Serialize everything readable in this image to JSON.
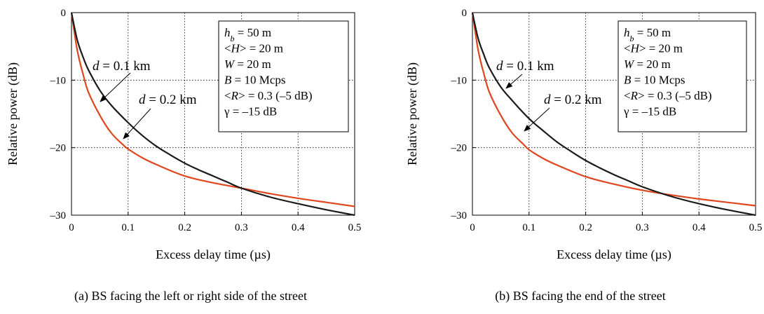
{
  "chart_data": [
    {
      "type": "line",
      "caption": "(a) BS facing the left or right side of the street",
      "xlabel": "Excess delay time (µs)",
      "ylabel": "Relative power (dB)",
      "xlim": [
        0,
        0.5
      ],
      "ylim": [
        -30,
        0
      ],
      "xticks": [
        "0",
        "0.1",
        "0.2",
        "0.3",
        "0.4",
        "0.5"
      ],
      "yticks": [
        "0",
        "–10",
        "–20",
        "–30"
      ],
      "grid": "dotted",
      "series": [
        {
          "name": "d = 0.1 km",
          "color": "#1a1a1a",
          "x": [
            0,
            0.01,
            0.02,
            0.03,
            0.05,
            0.07,
            0.1,
            0.125,
            0.15,
            0.175,
            0.2,
            0.225,
            0.25,
            0.275,
            0.3,
            0.35,
            0.4,
            0.45,
            0.5
          ],
          "y": [
            0,
            -4.0,
            -6.5,
            -8.5,
            -11.5,
            -13.7,
            -16.3,
            -18.2,
            -19.8,
            -21.1,
            -22.3,
            -23.3,
            -24.2,
            -25.1,
            -26.0,
            -27.3,
            -28.3,
            -29.2,
            -30.0
          ]
        },
        {
          "name": "d = 0.2 km",
          "color": "#e0461e",
          "x": [
            0,
            0.01,
            0.02,
            0.03,
            0.05,
            0.07,
            0.09,
            0.1,
            0.125,
            0.15,
            0.2,
            0.25,
            0.3,
            0.35,
            0.4,
            0.45,
            0.5
          ],
          "y": [
            0,
            -5.5,
            -9.0,
            -11.8,
            -15.2,
            -17.8,
            -19.5,
            -20.2,
            -21.5,
            -22.5,
            -24.2,
            -25.2,
            -26.0,
            -26.8,
            -27.5,
            -28.1,
            -28.7
          ]
        }
      ],
      "annotations": [
        "d = 0.1 km",
        "d = 0.2 km"
      ],
      "infobox": [
        "hb = 50 m",
        "<H> = 20 m",
        "W = 20 m",
        "B = 10 Mcps",
        "<R> = 0.3 (–5 dB)",
        "γ = –15 dB"
      ]
    },
    {
      "type": "line",
      "caption": "(b) BS facing the end of the street",
      "xlabel": "Excess delay time (µs)",
      "ylabel": "Relative power (dB)",
      "xlim": [
        0,
        0.5
      ],
      "ylim": [
        -30,
        0
      ],
      "xticks": [
        "0",
        "0.1",
        "0.2",
        "0.3",
        "0.4",
        "0.5"
      ],
      "yticks": [
        "0",
        "–10",
        "–20",
        "–30"
      ],
      "grid": "dotted",
      "series": [
        {
          "name": "d = 0.1 km",
          "color": "#1a1a1a",
          "x": [
            0,
            0.01,
            0.02,
            0.03,
            0.05,
            0.07,
            0.1,
            0.125,
            0.15,
            0.175,
            0.2,
            0.225,
            0.25,
            0.275,
            0.3,
            0.35,
            0.4,
            0.45,
            0.5
          ],
          "y": [
            0,
            -3.8,
            -6.2,
            -8.2,
            -11.0,
            -13.0,
            -15.7,
            -17.5,
            -19.2,
            -20.6,
            -21.9,
            -23.0,
            -24.0,
            -24.9,
            -25.8,
            -27.2,
            -28.3,
            -29.2,
            -30.0
          ]
        },
        {
          "name": "d = 0.2 km",
          "color": "#e0461e",
          "x": [
            0,
            0.01,
            0.02,
            0.03,
            0.05,
            0.07,
            0.09,
            0.1,
            0.125,
            0.15,
            0.2,
            0.25,
            0.3,
            0.35,
            0.4,
            0.45,
            0.5
          ],
          "y": [
            0,
            -5.5,
            -9.0,
            -11.8,
            -15.2,
            -17.8,
            -19.5,
            -20.3,
            -21.6,
            -22.6,
            -24.3,
            -25.4,
            -26.3,
            -27.0,
            -27.6,
            -28.1,
            -28.6
          ]
        }
      ],
      "annotations": [
        "d = 0.1 km",
        "d = 0.2 km"
      ],
      "infobox": [
        "hb = 50 m",
        "<H> = 20 m",
        "W = 20 m",
        "B = 10 Mcps",
        "<R> = 0.3 (–5 dB)",
        "γ = –15 dB"
      ]
    }
  ],
  "labels": {
    "hb_var": "h",
    "hb_sub": "b",
    "hb_rest": " = 50 m",
    "H_lt": "<",
    "H_var": "H",
    "H_rest": "> = 20 m",
    "W_var": "W",
    "W_rest": " = 20 m",
    "B_var": "B",
    "B_rest": " = 10 Mcps",
    "R_lt": "<",
    "R_var": "R",
    "R_rest": "> = 0.3 (–5 dB)",
    "gamma_line": "γ = –15 dB",
    "d_var": "d",
    "d1_rest": " = 0.1 km",
    "d2_rest": " = 0.2 km"
  }
}
